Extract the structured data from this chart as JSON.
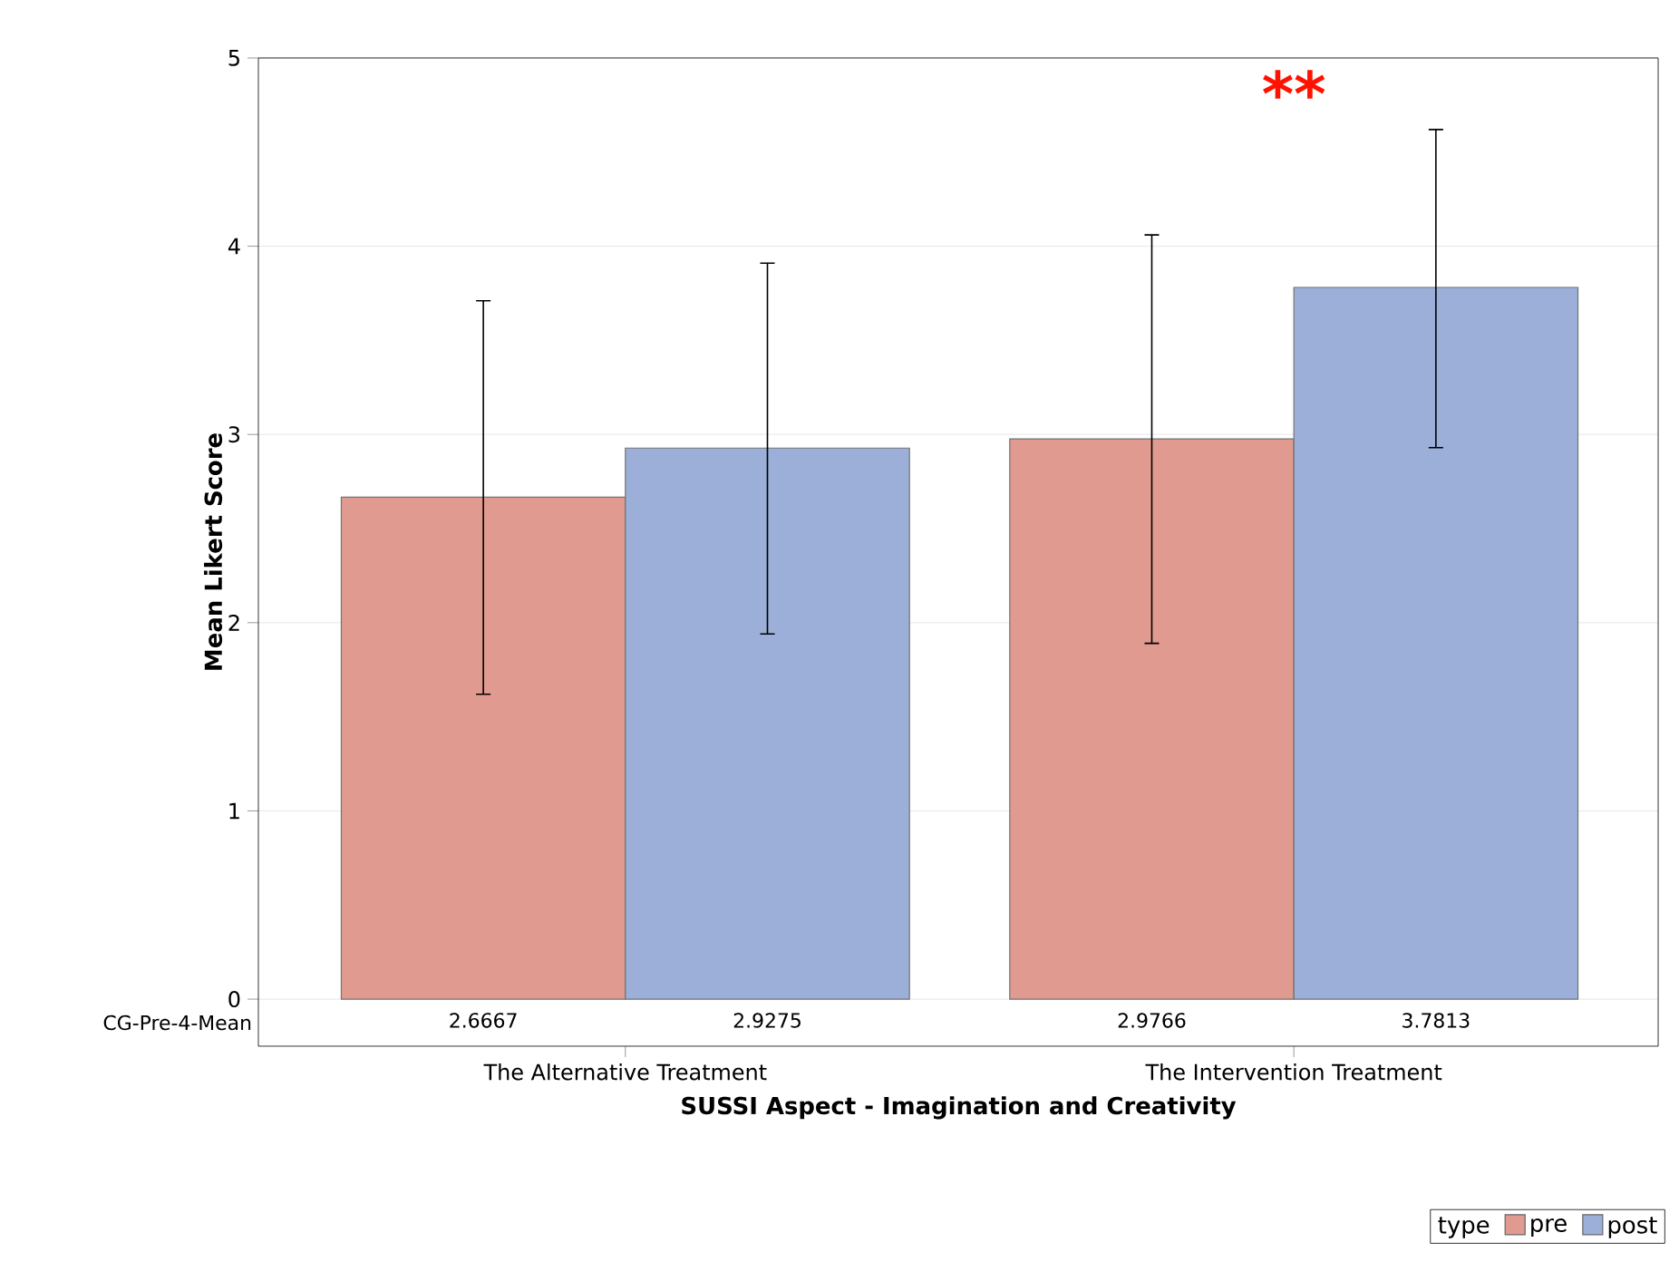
{
  "chart_data": {
    "type": "bar",
    "xlabel": "SUSSI Aspect - Imagination and Creativity",
    "ylabel": "Mean Likert Score",
    "categories": [
      "The Alternative Treatment",
      "The Intervention Treatment"
    ],
    "series": [
      {
        "name": "pre",
        "color": "#e09a90",
        "values": [
          2.6667,
          2.9766
        ],
        "errors": [
          [
            1.62,
            3.71
          ],
          [
            1.89,
            4.06
          ]
        ]
      },
      {
        "name": "post",
        "color": "#9bafd8",
        "values": [
          2.9275,
          3.7813
        ],
        "errors": [
          [
            1.94,
            3.91
          ],
          [
            2.93,
            4.62
          ]
        ]
      }
    ],
    "ylim": [
      -0.25,
      5
    ],
    "yticks": [
      0,
      1,
      2,
      3,
      4,
      5
    ],
    "grid": "y",
    "data_labels": true,
    "legend": "bottom right",
    "legend_title": "type",
    "annotations": [
      "CG-Pre-4-Mean",
      "**"
    ]
  }
}
